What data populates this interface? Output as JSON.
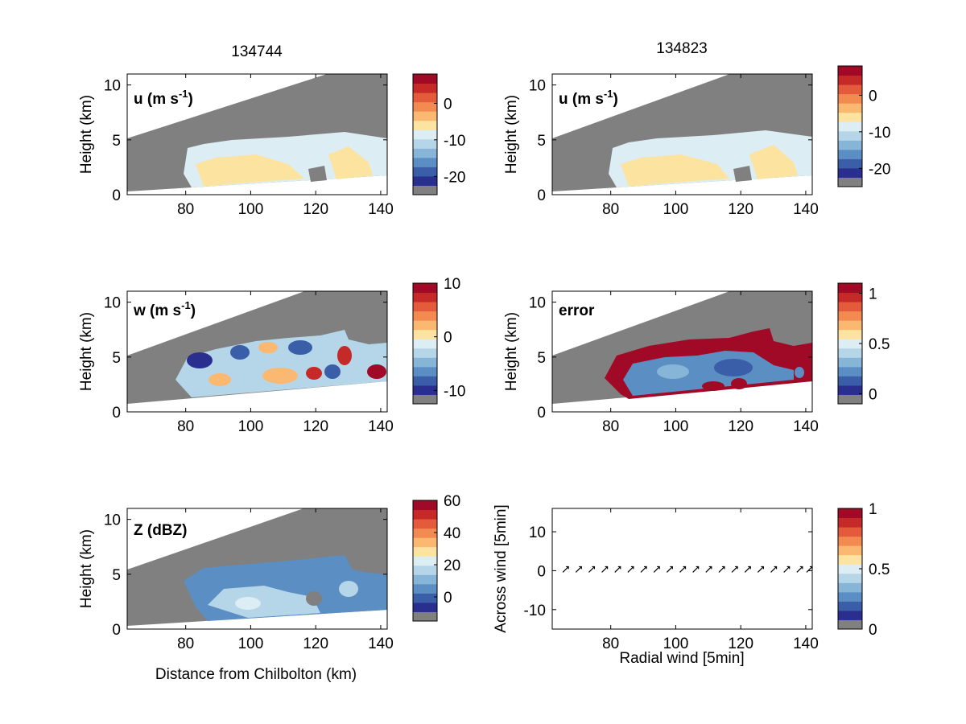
{
  "colors": {
    "gray": "#808080",
    "palette": [
      "#2a2f8f",
      "#3a5fa8",
      "#5b8ec2",
      "#87b5d8",
      "#b5d6e8",
      "#dcedf3",
      "#fde3a0",
      "#fbb870",
      "#f38a51",
      "#e45b3b",
      "#c52a29",
      "#a10a26"
    ]
  },
  "chart_data": [
    {
      "id": "u1",
      "type": "heatmap",
      "title": "134744",
      "label": "u (m s",
      "label_sup": "-1",
      "label_tail": ")",
      "xlabel": "",
      "ylabel": "Height (km)",
      "xlim": [
        62,
        142
      ],
      "ylim": [
        0,
        11
      ],
      "xticks": [
        "80",
        "100",
        "120",
        "140"
      ],
      "yticks": [
        "0",
        "5",
        "10"
      ],
      "colorbar": {
        "min": -25,
        "max": 8,
        "ticks": [
          "0",
          "-10",
          "-20"
        ],
        "tick_values": [
          0,
          -10,
          -20
        ]
      }
    },
    {
      "id": "u2",
      "type": "heatmap",
      "title": "134823",
      "label": "u (m s",
      "label_sup": "-1",
      "label_tail": ")",
      "xlabel": "",
      "ylabel": "Height (km)",
      "xlim": [
        62,
        142
      ],
      "ylim": [
        0,
        11
      ],
      "xticks": [
        "80",
        "100",
        "120",
        "140"
      ],
      "yticks": [
        "0",
        "5",
        "10"
      ],
      "colorbar": {
        "min": -25,
        "max": 8,
        "ticks": [
          "0",
          "-10",
          "-20"
        ],
        "tick_values": [
          0,
          -10,
          -20
        ]
      }
    },
    {
      "id": "w",
      "type": "heatmap",
      "title": "",
      "label": "w (m s",
      "label_sup": "-1",
      "label_tail": ")",
      "xlabel": "",
      "ylabel": "Height (km)",
      "xlim": [
        62,
        142
      ],
      "ylim": [
        0,
        11
      ],
      "xticks": [
        "80",
        "100",
        "120",
        "140"
      ],
      "yticks": [
        "0",
        "5",
        "10"
      ],
      "colorbar": {
        "min": -12.5,
        "max": 10,
        "ticks": [
          "10",
          "0",
          "-10"
        ],
        "tick_values": [
          10,
          0,
          -10
        ]
      }
    },
    {
      "id": "err",
      "type": "heatmap",
      "title": "",
      "label": "error",
      "label_sup": "",
      "label_tail": "",
      "xlabel": "",
      "ylabel": "Height (km)",
      "xlim": [
        62,
        142
      ],
      "ylim": [
        0,
        11
      ],
      "xticks": [
        "80",
        "100",
        "120",
        "140"
      ],
      "yticks": [
        "0",
        "5",
        "10"
      ],
      "colorbar": {
        "min": -0.1,
        "max": 1.1,
        "ticks": [
          "1",
          "0.5",
          "0"
        ],
        "tick_values": [
          1,
          0.5,
          0
        ]
      }
    },
    {
      "id": "z",
      "type": "heatmap",
      "title": "",
      "label": "Z (dBZ)",
      "label_sup": "",
      "label_tail": "",
      "xlabel": "Distance from Chilbolton (km)",
      "ylabel": "Height (km)",
      "xlim": [
        62,
        142
      ],
      "ylim": [
        0,
        11
      ],
      "xticks": [
        "80",
        "100",
        "120",
        "140"
      ],
      "yticks": [
        "0",
        "5",
        "10"
      ],
      "colorbar": {
        "min": -15,
        "max": 60,
        "ticks": [
          "60",
          "40",
          "20",
          "0"
        ],
        "tick_values": [
          60,
          40,
          20,
          0
        ]
      }
    },
    {
      "id": "vec",
      "type": "scatter",
      "title": "",
      "label": "",
      "label_sup": "",
      "label_tail": "",
      "xlabel": "Radial wind [5min]",
      "ylabel": "Across wind [5min]",
      "xlim": [
        62,
        142
      ],
      "ylim": [
        -15,
        16
      ],
      "xticks": [
        "80",
        "100",
        "120",
        "140"
      ],
      "yticks": [
        "-10",
        "0",
        "10"
      ],
      "x": [
        66,
        70,
        74,
        78,
        82,
        86,
        90,
        94,
        98,
        102,
        106,
        110,
        114,
        118,
        122,
        126,
        130,
        134,
        138,
        141
      ],
      "colorbar": {
        "min": 0,
        "max": 1,
        "ticks": [
          "1",
          "0.5",
          "0"
        ],
        "tick_values": [
          1,
          0.5,
          0
        ]
      }
    }
  ]
}
